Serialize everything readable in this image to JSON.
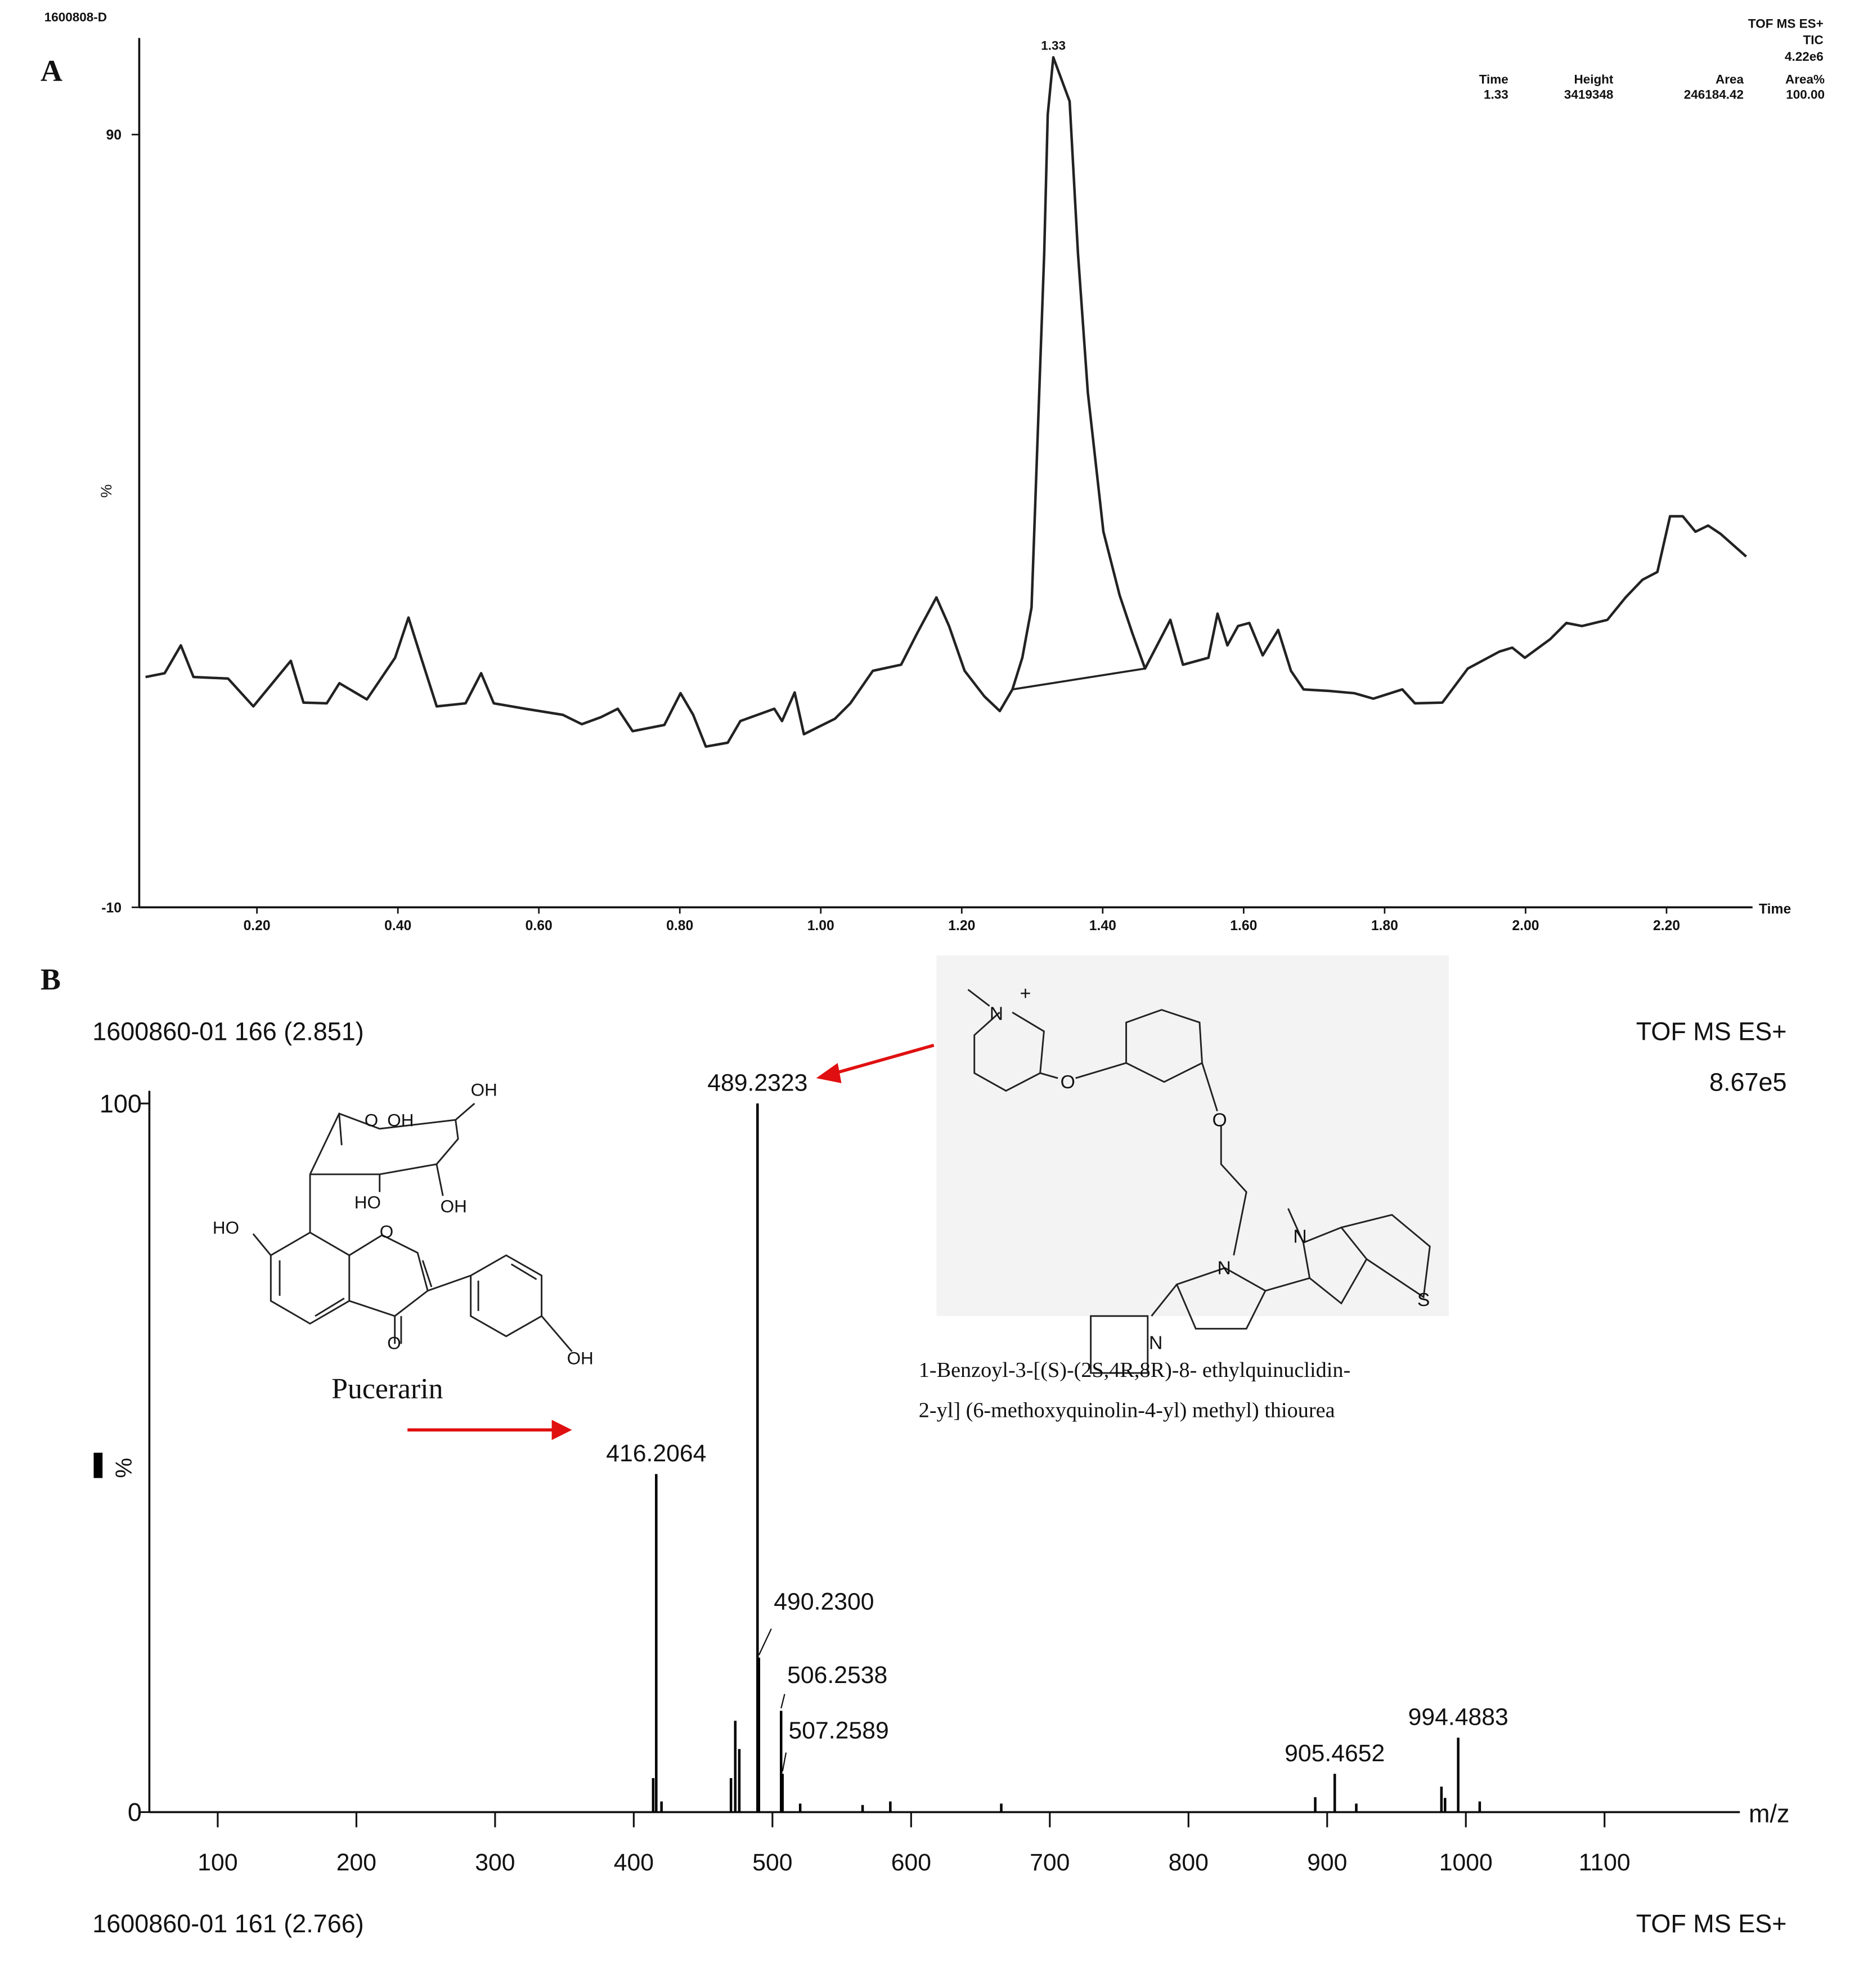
{
  "panel_labels": [
    "A",
    "B"
  ],
  "chart_data": [
    {
      "type": "line",
      "run_id": "1600808-D",
      "header": [
        "TOF MS ES+",
        "TIC",
        "4.22e6"
      ],
      "peak_table": {
        "columns": [
          "Time",
          "Height",
          "Area",
          "Area%"
        ],
        "row": [
          "1.33",
          "3419348",
          "246184.42",
          "100.00"
        ]
      },
      "ylabel": "%",
      "xlabel": "Time",
      "color": "#222",
      "x": [
        0.042,
        0.069,
        0.092,
        0.11,
        0.159,
        0.195,
        0.248,
        0.266,
        0.299,
        0.317,
        0.356,
        0.396,
        0.415,
        0.433,
        0.455,
        0.496,
        0.518,
        0.536,
        0.581,
        0.634,
        0.661,
        0.688,
        0.712,
        0.733,
        0.778,
        0.801,
        0.819,
        0.837,
        0.868,
        0.886,
        0.934,
        0.945,
        0.963,
        0.976,
        1.02,
        1.042,
        1.074,
        1.114,
        1.137,
        1.164,
        1.182,
        1.204,
        1.232,
        1.254,
        1.272,
        1.286,
        1.299,
        1.317,
        1.322,
        1.33,
        1.353,
        1.365,
        1.379,
        1.401,
        1.424,
        1.442,
        1.46,
        1.496,
        1.514,
        1.55,
        1.563,
        1.577,
        1.592,
        1.608,
        1.627,
        1.649,
        1.667,
        1.685,
        1.721,
        1.757,
        1.784,
        1.825,
        1.843,
        1.882,
        1.918,
        1.963,
        1.981,
        1.999,
        2.035,
        2.058,
        2.08,
        2.116,
        2.142,
        2.166,
        2.187,
        2.205,
        2.223,
        2.241,
        2.259,
        2.277,
        2.313
      ],
      "values": [
        19.8,
        20.3,
        23.9,
        19.8,
        19.6,
        16.0,
        21.9,
        16.5,
        16.4,
        19.0,
        16.9,
        22.3,
        27.5,
        22.3,
        16.0,
        16.4,
        20.3,
        16.4,
        15.7,
        14.9,
        13.7,
        14.6,
        15.7,
        12.8,
        13.6,
        17.7,
        14.9,
        10.8,
        11.3,
        14.1,
        15.7,
        14.1,
        17.8,
        12.4,
        14.4,
        16.4,
        20.6,
        21.4,
        25.5,
        30.1,
        26.4,
        20.6,
        17.3,
        15.4,
        18.2,
        22.3,
        28.8,
        74.6,
        92.6,
        100.0,
        94.3,
        74.6,
        56.6,
        38.6,
        30.4,
        25.5,
        20.9,
        27.2,
        21.4,
        22.3,
        28.0,
        23.9,
        26.4,
        26.8,
        22.6,
        25.9,
        20.6,
        18.2,
        18.0,
        17.7,
        17.0,
        18.2,
        16.4,
        16.5,
        20.9,
        23.1,
        23.6,
        22.3,
        24.7,
        26.8,
        26.4,
        27.2,
        30.1,
        32.4,
        33.4,
        40.6,
        40.6,
        38.6,
        39.4,
        38.3,
        35.4
      ],
      "xlim": [
        0.033,
        2.322
      ],
      "ylim": [
        -10,
        102.5
      ],
      "xticks": [
        {
          "value": 0.2,
          "label": "0.20"
        },
        {
          "value": 0.4,
          "label": "0.40"
        },
        {
          "value": 0.6,
          "label": "0.60"
        },
        {
          "value": 0.8,
          "label": "0.80"
        },
        {
          "value": 1.0,
          "label": "1.00"
        },
        {
          "value": 1.2,
          "label": "1.20"
        },
        {
          "value": 1.4,
          "label": "1.40"
        },
        {
          "value": 1.6,
          "label": "1.60"
        },
        {
          "value": 1.8,
          "label": "1.80"
        },
        {
          "value": 2.0,
          "label": "2.00"
        },
        {
          "value": 2.2,
          "label": "2.20"
        }
      ],
      "yticks": [
        90,
        -10
      ]
    },
    {
      "type": "bar",
      "title": "1600860-01 166 (2.851)",
      "header": [
        "TOF MS ES+",
        "8.67e5"
      ],
      "footer": [
        "1600860-01 161 (2.766)",
        "TOF MS ES+"
      ],
      "ylabel": "%",
      "xlabel": "m/z",
      "color": "#000",
      "x": [
        414.0,
        416.2064,
        420.0,
        470.1,
        473.2,
        476.1,
        489.2323,
        490.23,
        506.2538,
        507.2589,
        520.0,
        565.0,
        585.0,
        665.0,
        891.4,
        905.4652,
        921.0,
        982.4,
        985.0,
        994.4883,
        1010.0
      ],
      "values": [
        4.8,
        47.7,
        1.5,
        4.8,
        12.9,
        8.9,
        100,
        21.8,
        14.3,
        5.4,
        1.2,
        1.0,
        1.5,
        1.2,
        2.1,
        5.4,
        1.2,
        3.6,
        2.0,
        10.5,
        1.5
      ],
      "x_labels": [
        null,
        "416.2064",
        null,
        null,
        null,
        null,
        "489.2323",
        "490.2300",
        "506.2538",
        "507.2589",
        null,
        null,
        null,
        null,
        null,
        "905.4652",
        null,
        null,
        null,
        "994.4883",
        null
      ],
      "xlim": [
        50.7,
        1197.6
      ],
      "ylim": [
        0,
        100
      ],
      "xticks": [
        100,
        200,
        300,
        400,
        500,
        600,
        700,
        800,
        900,
        1000,
        1100
      ],
      "yticks": [
        0,
        100
      ]
    }
  ],
  "structures": {
    "puerarin": {
      "name": "Pucerarin",
      "atoms": [
        "OH",
        "O",
        "OH",
        "HO",
        "OH",
        "HO",
        "O",
        "O",
        "OH"
      ]
    },
    "ligand": {
      "name_lines": [
        "1-Benzoyl-3-[(S)-(2S,4R,8R)-8- ethylquinuclidin-",
        "2-yl] (6-methoxyquinolin-4-yl) methyl) thiourea"
      ],
      "atoms": [
        "N",
        "+",
        "O",
        "O",
        "N",
        "N",
        "N",
        "S"
      ]
    }
  }
}
